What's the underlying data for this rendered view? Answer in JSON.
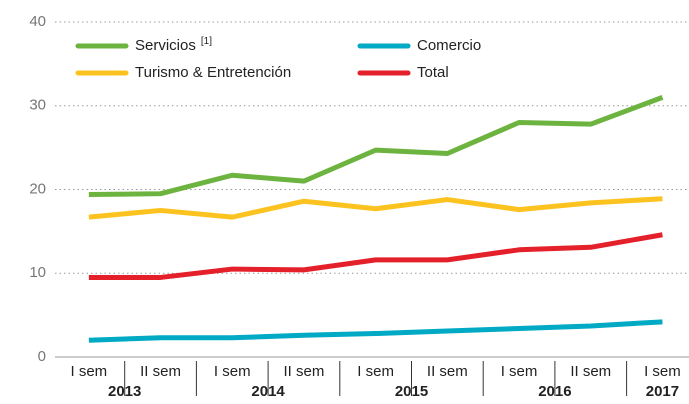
{
  "chart_data": {
    "type": "line",
    "categories": [
      "I sem",
      "II sem",
      "I sem",
      "II sem",
      "I sem",
      "II sem",
      "I sem",
      "II sem",
      "I sem"
    ],
    "years": [
      "2013",
      null,
      "2014",
      null,
      "2015",
      null,
      "2016",
      null,
      "2017"
    ],
    "series": [
      {
        "name": "Servicios",
        "note": "[1]",
        "color": "#6db33f",
        "values": [
          19.4,
          19.5,
          21.7,
          21.0,
          24.7,
          24.3,
          28.0,
          27.8,
          31.0
        ]
      },
      {
        "name": "Comercio",
        "color": "#00a9c4",
        "values": [
          2.0,
          2.3,
          2.3,
          2.6,
          2.8,
          3.1,
          3.4,
          3.7,
          4.2
        ]
      },
      {
        "name": "Turismo & Entretención",
        "color": "#fcc320",
        "values": [
          16.7,
          17.5,
          16.7,
          18.6,
          17.7,
          18.8,
          17.6,
          18.4,
          18.9
        ]
      },
      {
        "name": "Total",
        "color": "#e4202a",
        "values": [
          9.5,
          9.5,
          10.5,
          10.4,
          11.6,
          11.6,
          12.8,
          13.1,
          14.6
        ]
      }
    ],
    "ylim": [
      0,
      40
    ],
    "yticks": [
      0,
      10,
      20,
      30,
      40
    ],
    "grid": true,
    "legend": "top-left"
  }
}
